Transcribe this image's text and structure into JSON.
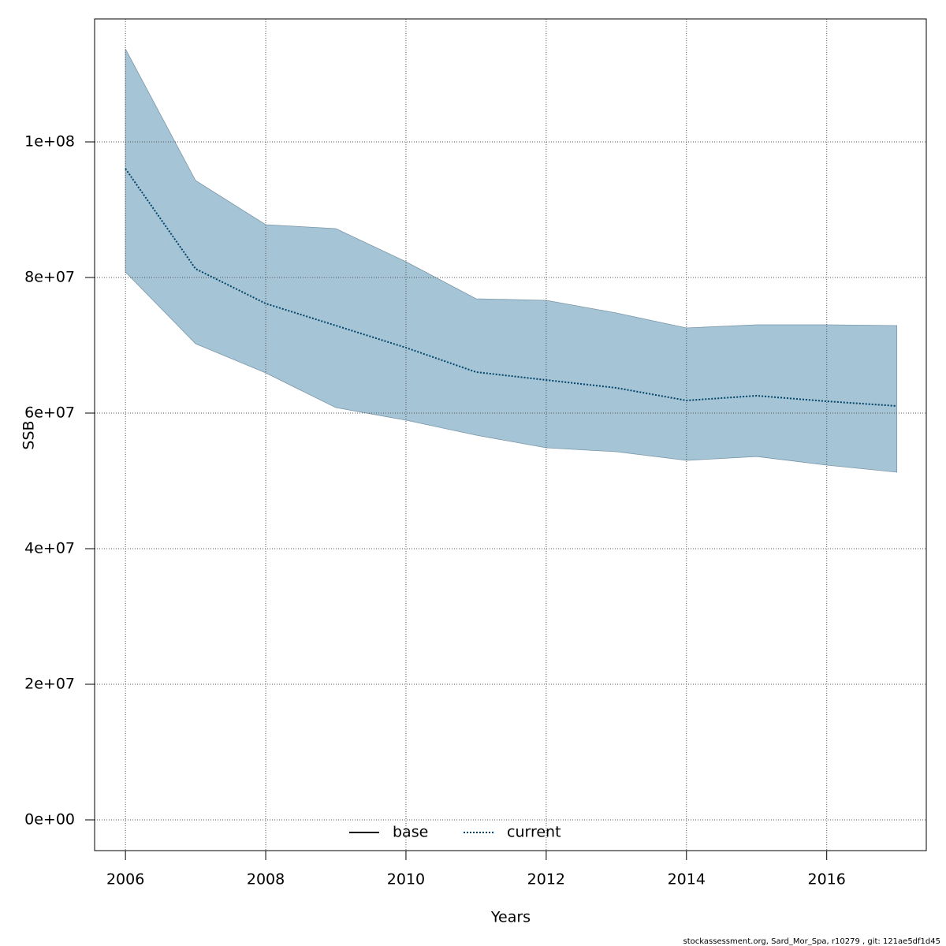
{
  "chart_data": {
    "type": "line",
    "x": [
      2006,
      2007,
      2008,
      2009,
      2010,
      2011,
      2012,
      2013,
      2014,
      2015,
      2016,
      2017
    ],
    "series": [
      {
        "name": "base",
        "color": "#000000",
        "linestyle": "solid",
        "values": [
          null,
          null,
          null,
          null,
          null,
          null,
          null,
          null,
          null,
          null,
          null,
          null
        ]
      },
      {
        "name": "current",
        "color": "#00446b",
        "linestyle": "dotted",
        "values": [
          96050000,
          81280000,
          76160000,
          72910000,
          69650000,
          66050000,
          64880000,
          63720000,
          61860000,
          62560000,
          61740000,
          61050000
        ]
      }
    ],
    "band": {
      "color": "#a5c4d5",
      "upper": [
        113720000,
        94300000,
        87790000,
        87210000,
        82330000,
        76860000,
        76630000,
        74770000,
        72560000,
        73020000,
        73020000,
        72910000
      ],
      "lower": [
        80810000,
        70230000,
        65930000,
        60810000,
        58950000,
        56740000,
        54880000,
        54300000,
        53020000,
        53600000,
        52330000,
        51280000
      ]
    },
    "xlabel": "Years",
    "ylabel": "SSB",
    "xlim": [
      2005.56,
      2017.42
    ],
    "ylim": [
      -4535000,
      118140000
    ],
    "xticks": [
      2006,
      2008,
      2010,
      2012,
      2014,
      2016
    ],
    "yticks": [
      {
        "value": 0,
        "label": "0e+00"
      },
      {
        "value": 20000000,
        "label": "2e+07"
      },
      {
        "value": 40000000,
        "label": "4e+07"
      },
      {
        "value": 60000000,
        "label": "6e+07"
      },
      {
        "value": 80000000,
        "label": "8e+07"
      },
      {
        "value": 100000000,
        "label": "1e+08"
      }
    ],
    "grid": true,
    "legend": "bottom",
    "footer": "stockassessment.org, Sard_Mor_Spa, r10279 , git: 121ae5df1d45"
  }
}
